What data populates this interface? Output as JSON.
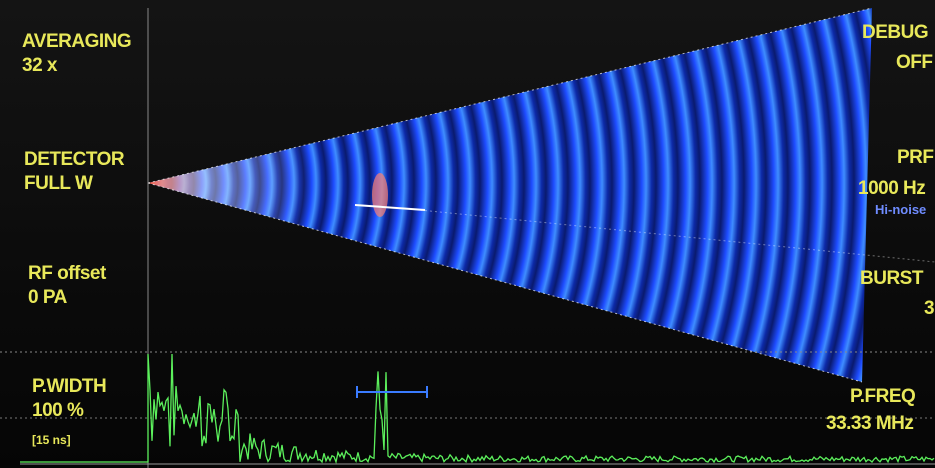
{
  "left_panel": [
    {
      "label": "AVERAGING",
      "value": "32 x"
    },
    {
      "label": "DETECTOR",
      "value": "FULL W"
    },
    {
      "label": "RF offset",
      "value": "0 PA"
    },
    {
      "label": "P.WIDTH",
      "value": "100 %",
      "note": "[15 ns]"
    }
  ],
  "right_panel": [
    {
      "label": "DEBUG",
      "value": "OFF"
    },
    {
      "label": "PRF",
      "value": "1000 Hz",
      "note": "Hi-noise"
    },
    {
      "label": "BURST",
      "value": "3"
    },
    {
      "label": "P.FREQ",
      "value": "33.33 MHz"
    }
  ]
}
